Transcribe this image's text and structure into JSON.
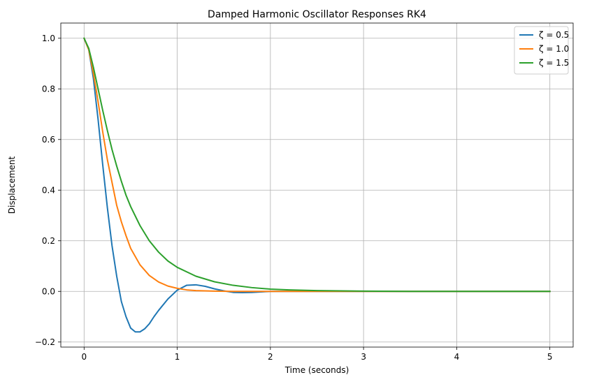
{
  "chart_data": {
    "type": "line",
    "title": "Damped Harmonic Oscillator Responses RK4",
    "xlabel": "Time (seconds)",
    "ylabel": "Displacement",
    "xlim": [
      -0.25,
      5.25
    ],
    "ylim": [
      -0.22,
      1.06
    ],
    "xticks": [
      0,
      1,
      2,
      3,
      4,
      5
    ],
    "xtick_labels": [
      "0",
      "1",
      "2",
      "3",
      "4",
      "5"
    ],
    "yticks": [
      -0.2,
      0.0,
      0.2,
      0.4,
      0.6,
      0.8,
      1.0
    ],
    "ytick_labels": [
      "−0.2",
      "0.0",
      "0.2",
      "0.4",
      "0.6",
      "0.8",
      "1.0"
    ],
    "grid": true,
    "legend_position": "top-right",
    "series": [
      {
        "name": "ζ = 0.5",
        "color": "#1f77b4",
        "x": [
          0,
          0.05,
          0.1,
          0.15,
          0.2,
          0.25,
          0.3,
          0.35,
          0.4,
          0.45,
          0.5,
          0.55,
          0.6,
          0.65,
          0.7,
          0.75,
          0.8,
          0.9,
          1.0,
          1.1,
          1.2,
          1.3,
          1.4,
          1.5,
          1.6,
          1.7,
          1.8,
          1.9,
          2.0,
          2.5,
          3.0,
          3.5,
          4.0,
          4.5,
          5.0
        ],
        "y": [
          1.0,
          0.955,
          0.84,
          0.68,
          0.5,
          0.33,
          0.18,
          0.06,
          -0.04,
          -0.1,
          -0.145,
          -0.16,
          -0.16,
          -0.148,
          -0.128,
          -0.1,
          -0.075,
          -0.03,
          0.005,
          0.024,
          0.026,
          0.02,
          0.01,
          0.002,
          -0.004,
          -0.005,
          -0.004,
          -0.002,
          0.0,
          0.0,
          0.0,
          0.0,
          0.0,
          0.0,
          0.0
        ]
      },
      {
        "name": "ζ = 1.0",
        "color": "#ff7f0e",
        "x": [
          0,
          0.05,
          0.1,
          0.15,
          0.2,
          0.25,
          0.3,
          0.35,
          0.4,
          0.45,
          0.5,
          0.6,
          0.7,
          0.8,
          0.9,
          1.0,
          1.1,
          1.2,
          1.4,
          1.6,
          1.8,
          2.0,
          2.5,
          3.0,
          3.5,
          4.0,
          4.5,
          5.0
        ],
        "y": [
          1.0,
          0.955,
          0.86,
          0.75,
          0.63,
          0.52,
          0.43,
          0.34,
          0.275,
          0.22,
          0.17,
          0.105,
          0.063,
          0.037,
          0.021,
          0.012,
          0.006,
          0.003,
          0.001,
          0.0,
          0.0,
          0.0,
          0.0,
          0.0,
          0.0,
          0.0,
          0.0,
          0.0
        ]
      },
      {
        "name": "ζ = 1.5",
        "color": "#2ca02c",
        "x": [
          0,
          0.05,
          0.1,
          0.15,
          0.2,
          0.25,
          0.3,
          0.35,
          0.4,
          0.45,
          0.5,
          0.6,
          0.7,
          0.8,
          0.9,
          1.0,
          1.2,
          1.4,
          1.6,
          1.8,
          2.0,
          2.2,
          2.5,
          3.0,
          3.5,
          4.0,
          4.5,
          5.0
        ],
        "y": [
          1.0,
          0.96,
          0.885,
          0.8,
          0.715,
          0.635,
          0.56,
          0.495,
          0.435,
          0.38,
          0.335,
          0.26,
          0.2,
          0.155,
          0.12,
          0.095,
          0.06,
          0.038,
          0.024,
          0.015,
          0.009,
          0.006,
          0.003,
          0.001,
          0.0,
          0.0,
          0.0,
          0.0
        ]
      }
    ]
  }
}
